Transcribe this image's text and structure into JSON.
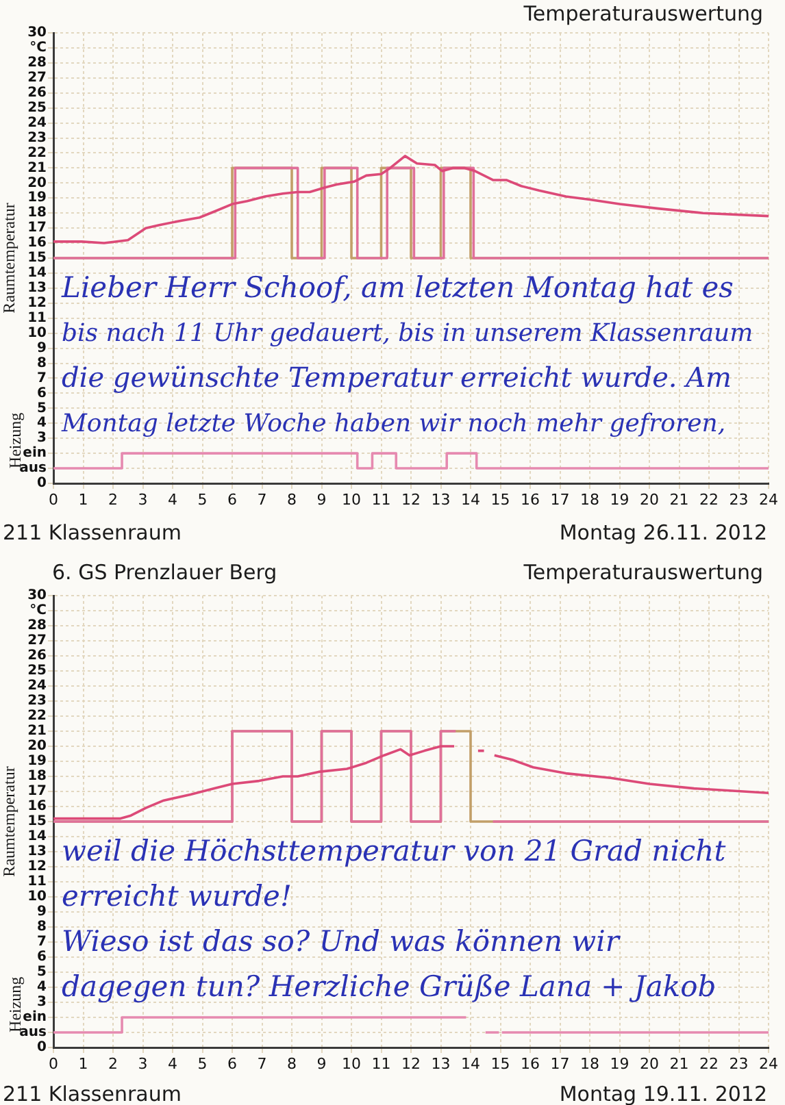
{
  "chart_data": [
    {
      "type": "line",
      "title": "Temperaturauswertung",
      "ylabel": "Raumtemperatur",
      "annotations": [
        "Heizung",
        "211 Klassenraum",
        "Montag 26.11. 2012",
        "Lieber Herr Schoof, am letzten Montag hat es",
        "bis nach 11 Uhr gedauert, bis in unserem Klassenraum",
        "die gewünschte Temperatur erreicht wurde. Am",
        "Montag letzte Woche haben wir noch mehr gefroren,"
      ],
      "xlim": [
        0,
        24
      ],
      "xticks": [
        0,
        1,
        2,
        3,
        4,
        5,
        6,
        7,
        8,
        9,
        10,
        11,
        12,
        13,
        14,
        15,
        16,
        17,
        18,
        19,
        20,
        21,
        22,
        23,
        24
      ],
      "ylim": [
        0,
        30
      ],
      "yticks": [
        0,
        {
          "value": 1,
          "label": "aus"
        },
        {
          "value": 2,
          "label": "ein"
        },
        3,
        4,
        5,
        6,
        7,
        8,
        9,
        10,
        11,
        12,
        13,
        14,
        15,
        16,
        17,
        18,
        19,
        20,
        21,
        22,
        23,
        24,
        25,
        26,
        27,
        28,
        {
          "value": 29,
          "label": "°C"
        },
        30
      ],
      "grid": true,
      "series": [
        {
          "type": "step",
          "color": "#c29f68",
          "x": [
            0,
            6,
            8,
            9,
            10,
            11,
            12,
            13,
            14,
            24
          ],
          "values": [
            15,
            21,
            15,
            21,
            15,
            21,
            15,
            21,
            15,
            15
          ]
        },
        {
          "type": "step",
          "color": "#e0709a",
          "x": [
            0,
            6.1,
            8.2,
            9.1,
            10.2,
            11.2,
            12.1,
            13.1,
            14.1,
            24
          ],
          "values": [
            15,
            21,
            15,
            21,
            15,
            21,
            15,
            21,
            15,
            15
          ]
        },
        {
          "type": "line",
          "color": "#dc4a78",
          "x": [
            0,
            0.95,
            1.7,
            2.5,
            3.1,
            3.55,
            4.3,
            4.9,
            5.4,
            6.0,
            6.5,
            7.1,
            7.7,
            8.2,
            8.6,
            9.1,
            9.5,
            10.1,
            10.5,
            11.0,
            11.3,
            11.8,
            12.2,
            12.8,
            13.05,
            13.4,
            13.8,
            14.15,
            14.75,
            15.2,
            15.7,
            16.3,
            17.2,
            18.0,
            19.0,
            20.3,
            21.8,
            24
          ],
          "values": [
            16.1,
            16.1,
            16.0,
            16.2,
            17.0,
            17.2,
            17.5,
            17.7,
            18.1,
            18.6,
            18.8,
            19.1,
            19.3,
            19.4,
            19.4,
            19.7,
            19.9,
            20.1,
            20.5,
            20.6,
            21.0,
            21.8,
            21.3,
            21.2,
            20.8,
            21.0,
            21.0,
            20.8,
            20.2,
            20.2,
            19.8,
            19.5,
            19.1,
            18.9,
            18.6,
            18.3,
            18.0,
            17.8
          ]
        },
        {
          "type": "step",
          "color": "#e68ab0",
          "x": [
            0,
            2.3,
            10.2,
            10.7,
            11.5,
            13.2,
            14.2,
            24
          ],
          "values": [
            1,
            2,
            1,
            2,
            1,
            2,
            1,
            1
          ]
        }
      ]
    },
    {
      "type": "line",
      "title": "Temperaturauswertung",
      "subtitle": "6. GS Prenzlauer Berg",
      "ylabel": "Raumtemperatur",
      "annotations": [
        "Heizung",
        "211 Klassenraum",
        "Montag 19.11. 2012",
        "weil die Höchsttemperatur von 21 Grad nicht",
        "erreicht wurde!",
        "Wieso ist das so? Und was können wir",
        "dagegen tun? Herzliche Grüße Lana + Jakob"
      ],
      "xlim": [
        0,
        24
      ],
      "xticks": [
        0,
        1,
        2,
        3,
        4,
        5,
        6,
        7,
        8,
        9,
        10,
        11,
        12,
        13,
        14,
        15,
        16,
        17,
        18,
        19,
        20,
        21,
        22,
        23,
        24
      ],
      "ylim": [
        0,
        30
      ],
      "yticks": [
        0,
        {
          "value": 1,
          "label": "aus"
        },
        {
          "value": 2,
          "label": "ein"
        },
        3,
        4,
        5,
        6,
        7,
        8,
        9,
        10,
        11,
        12,
        13,
        14,
        15,
        16,
        17,
        18,
        19,
        20,
        21,
        22,
        23,
        24,
        25,
        26,
        27,
        28,
        {
          "value": 29,
          "label": "°C"
        },
        30
      ],
      "grid": true,
      "series": [
        {
          "type": "step",
          "color": "#c29f68",
          "x": [
            0,
            6,
            8,
            9,
            10,
            11,
            12,
            13,
            14,
            24
          ],
          "values": [
            15,
            21,
            15,
            21,
            15,
            21,
            15,
            21,
            15,
            15
          ]
        },
        {
          "type": "step",
          "color": "#e0709a",
          "x": [
            0,
            6,
            8,
            9,
            10,
            11,
            12,
            13,
            13.5,
            13.55,
            14.75,
            24
          ],
          "values": [
            15,
            21,
            15,
            21,
            15,
            21,
            15,
            21,
            21,
            null,
            15,
            15
          ]
        },
        {
          "type": "line",
          "color": "#dc4a78",
          "x": [
            0,
            1.25,
            2.25,
            2.6,
            3.1,
            3.7,
            4.6,
            5.4,
            6.0,
            6.9,
            7.7,
            8.2,
            8.9,
            9.85,
            10.5,
            11.1,
            11.65,
            11.95,
            12.45,
            13.0,
            13.45,
            13.5,
            14.25,
            14.45,
            14.6,
            14.8,
            15.4,
            16.1,
            17.2,
            18.7,
            20.0,
            21.5,
            24
          ],
          "values": [
            15.2,
            15.2,
            15.2,
            15.4,
            15.9,
            16.4,
            16.8,
            17.2,
            17.5,
            17.7,
            18.0,
            18.0,
            18.3,
            18.5,
            18.9,
            19.4,
            19.8,
            19.4,
            19.7,
            20.0,
            20.0,
            null,
            19.7,
            19.7,
            null,
            19.4,
            19.1,
            18.6,
            18.2,
            17.9,
            17.5,
            17.2,
            16.9
          ]
        },
        {
          "type": "step",
          "color": "#e68ab0",
          "x": [
            0,
            2.3,
            13.85,
            13.9,
            14.5,
            14.95,
            15.0,
            15.05,
            24
          ],
          "values": [
            1,
            2,
            2,
            null,
            1,
            1,
            null,
            1,
            1
          ]
        }
      ]
    }
  ]
}
